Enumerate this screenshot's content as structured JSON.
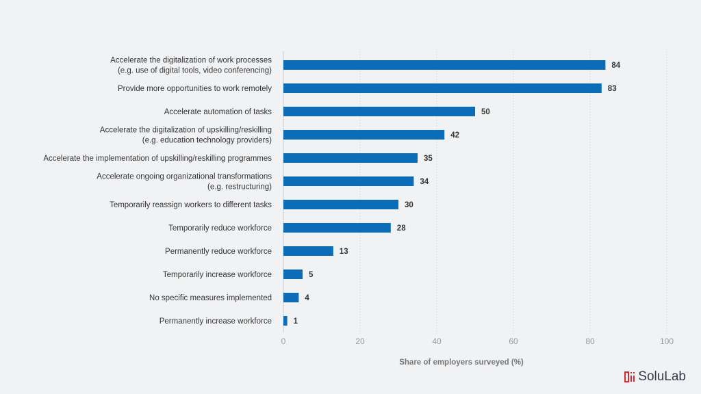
{
  "chart_data": {
    "type": "bar",
    "orientation": "horizontal",
    "categories": [
      [
        "Accelerate the digitalization of work processes",
        "(e.g. use of digital tools, video conferencing)"
      ],
      [
        "Provide more opportunities to work remotely"
      ],
      [
        "Accelerate automation of tasks"
      ],
      [
        "Accelerate the digitalization of upskilling/reskilling",
        "(e.g. education technology providers)"
      ],
      [
        "Accelerate the implementation of upskilling/reskilling programmes"
      ],
      [
        "Accelerate ongoing organizational transformations",
        "(e.g. restructuring)"
      ],
      [
        "Temporarily reassign workers to different tasks"
      ],
      [
        "Temporarily reduce workforce"
      ],
      [
        "Permanently reduce workforce"
      ],
      [
        "Temporarily increase workforce"
      ],
      [
        "No specific measures implemented"
      ],
      [
        "Permanently increase workforce"
      ]
    ],
    "values": [
      84,
      83,
      50,
      42,
      35,
      34,
      30,
      28,
      13,
      5,
      4,
      1
    ],
    "xlabel": "Share of employers surveyed (%)",
    "xlim": [
      0,
      100
    ],
    "xticks": [
      0,
      20,
      40,
      60,
      80,
      100
    ],
    "grid": true,
    "bar_color": "#0b6db7"
  },
  "logo": {
    "text": "SoluLab",
    "color": "#e0262b"
  }
}
